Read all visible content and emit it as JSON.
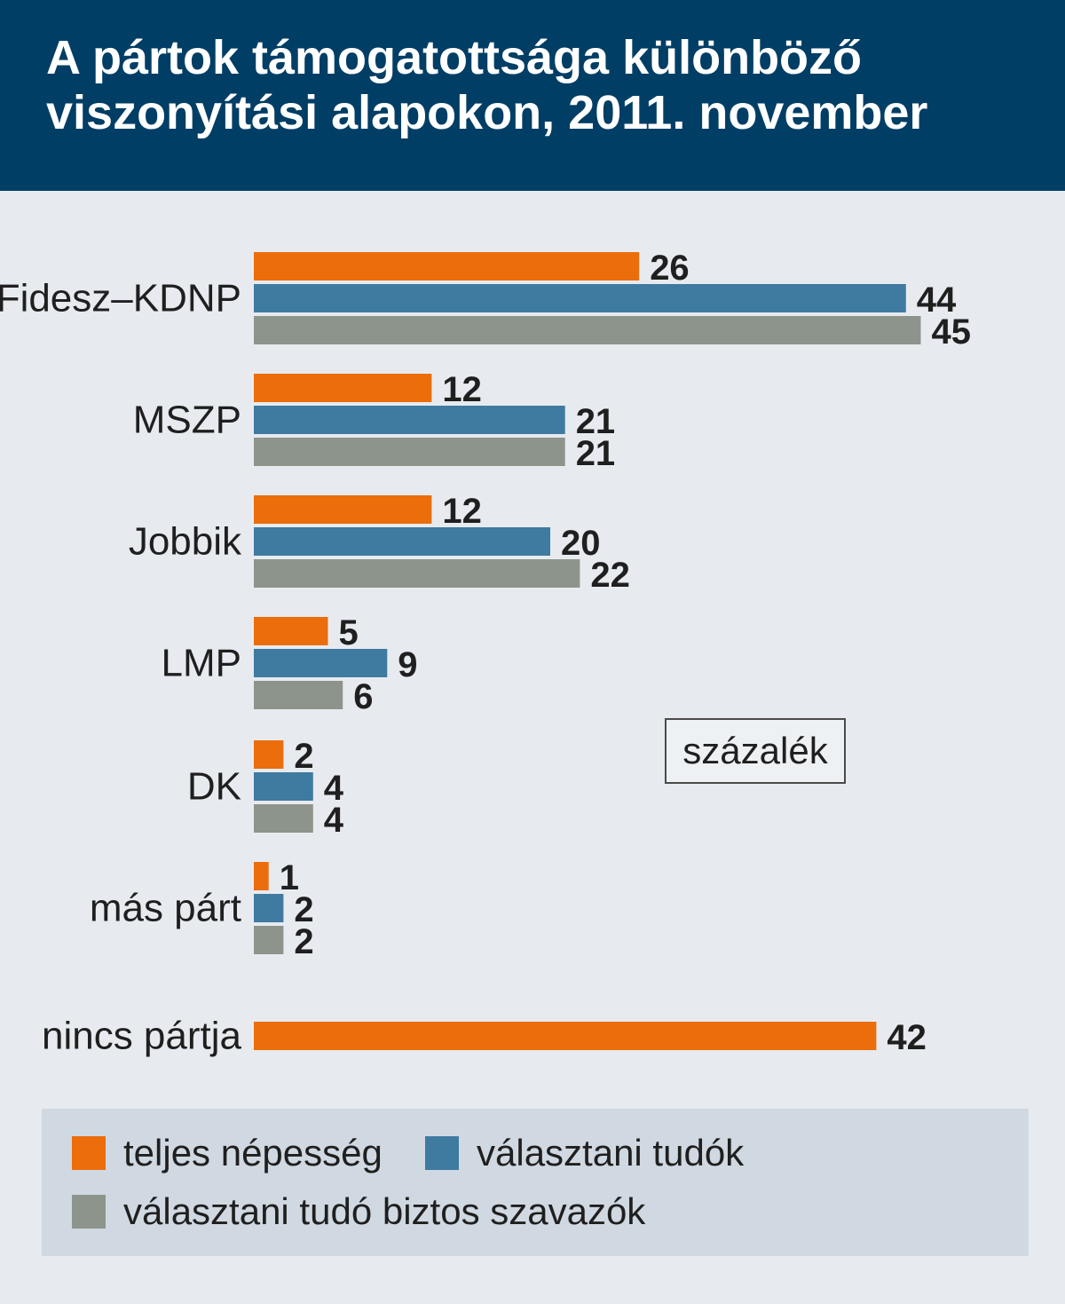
{
  "header": {
    "title_line1": "A pártok támogatottsága különböző",
    "title_line2": "viszonyítási alapokon, 2011. november"
  },
  "unit_label": "százalék",
  "colors": {
    "header_bg": "#013e65",
    "series": [
      "#eb6d0b",
      "#3f7aa1",
      "#8d948c"
    ]
  },
  "legend": {
    "items": [
      {
        "label": "teljes népesség",
        "color": "#eb6d0b"
      },
      {
        "label": "választani tudók",
        "color": "#3f7aa1"
      },
      {
        "label": "választani tudó biztos szavazók",
        "color": "#8d948c"
      }
    ]
  },
  "chart_data": {
    "type": "bar",
    "orientation": "horizontal",
    "categories": [
      "Fidesz–KDNP",
      "MSZP",
      "Jobbik",
      "LMP",
      "DK",
      "más párt",
      "nincs pártja"
    ],
    "series": [
      {
        "name": "teljes népesség",
        "values": [
          26,
          12,
          12,
          5,
          2,
          1,
          42
        ]
      },
      {
        "name": "választani tudók",
        "values": [
          44,
          21,
          20,
          9,
          4,
          2,
          null
        ]
      },
      {
        "name": "választani tudó biztos szavazók",
        "values": [
          45,
          21,
          22,
          6,
          4,
          2,
          null
        ]
      }
    ],
    "unit": "százalék",
    "xlim": [
      0,
      45
    ],
    "grid": false,
    "legend_position": "bottom"
  }
}
